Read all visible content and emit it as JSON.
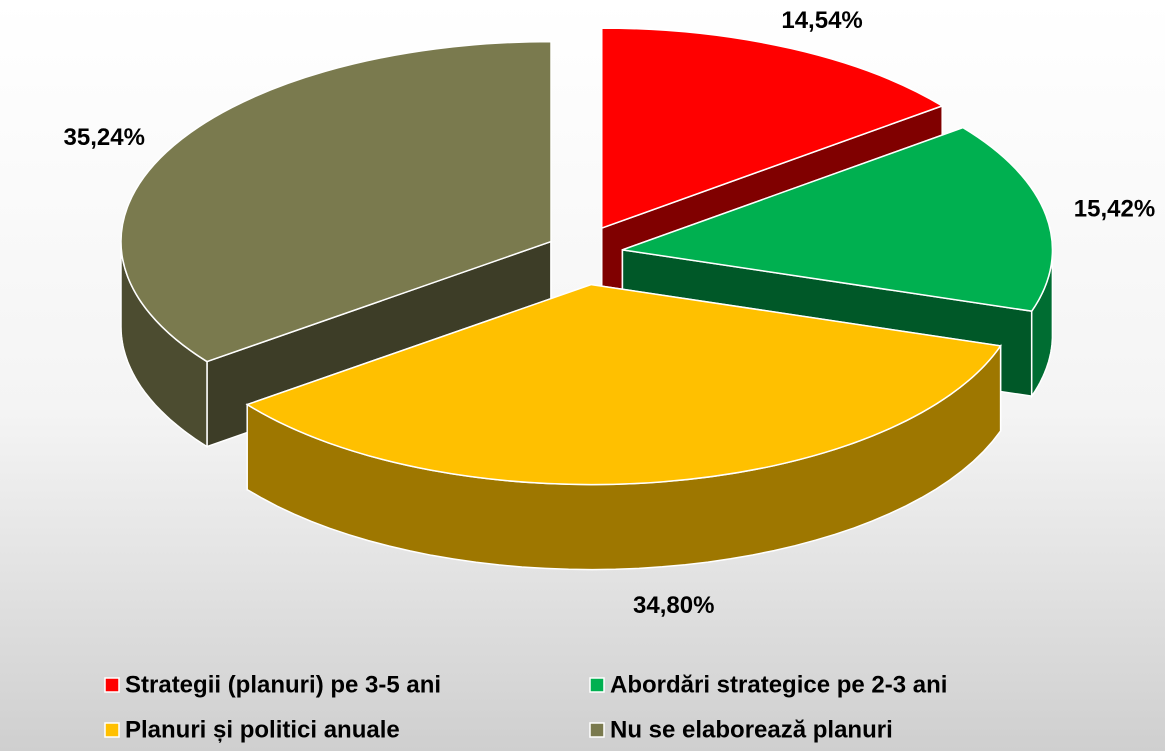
{
  "chart_data": {
    "type": "pie",
    "categories": [
      "Strategii  (planuri) pe 3-5 ani",
      "Abordări strategice pe 2-3 ani",
      "Planuri și politici anuale",
      "Nu se elaborează planuri"
    ],
    "values": [
      14.54,
      15.42,
      34.8,
      35.24
    ],
    "value_labels": [
      "14,54%",
      "15,42%",
      "34,80%",
      "35,24%"
    ],
    "colors": [
      "#ff0000",
      "#00b050",
      "#ffc000",
      "#7a7a4e"
    ],
    "legend": "bottom"
  }
}
